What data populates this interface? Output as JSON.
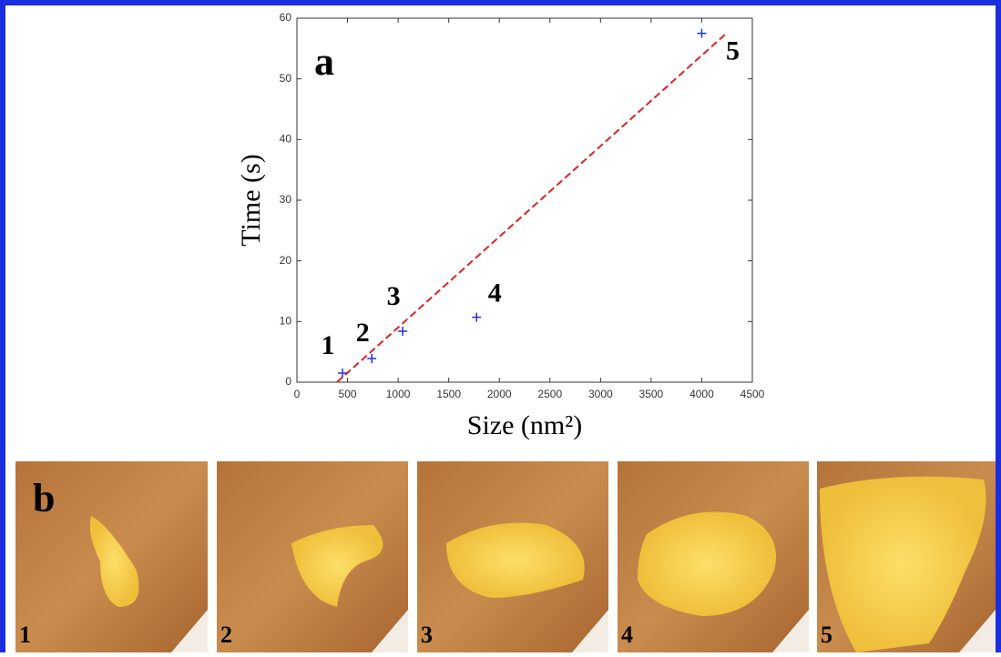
{
  "chart_data": {
    "type": "scatter",
    "panel_label": "a",
    "x_label": "Size (nm²)",
    "y_label": "Time (s)",
    "x": [
      450,
      740,
      1045,
      1775,
      4000
    ],
    "series": [
      {
        "color": "#2233cc",
        "values": [
          1.5,
          3.9,
          8.4,
          10.7,
          57.5
        ]
      }
    ],
    "point_labels": [
      "1",
      "2",
      "3",
      "4",
      "5"
    ],
    "fit": {
      "color": "#dd2222",
      "x": [
        396,
        4250
      ],
      "values": [
        0,
        57.6
      ]
    },
    "xlim": [
      0,
      4500
    ],
    "xticks": [
      0,
      500,
      1000,
      1500,
      2000,
      2500,
      3000,
      3500,
      4000,
      4500
    ],
    "ylim": [
      0,
      60
    ],
    "yticks": [
      0,
      10,
      20,
      30,
      40,
      50,
      60
    ]
  },
  "panel_b": {
    "label": "b",
    "images": [
      "1",
      "2",
      "3",
      "4",
      "5"
    ]
  }
}
